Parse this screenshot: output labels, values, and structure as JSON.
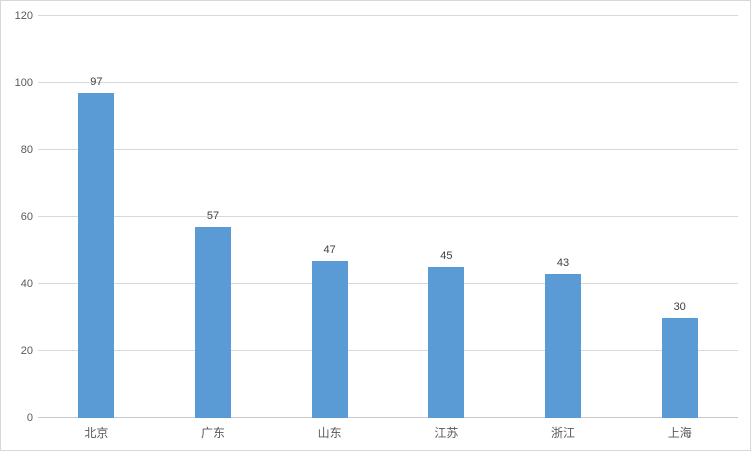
{
  "chart_style": {
    "bar_color": "#5b9bd5",
    "gridline_color": "#d9d9d9",
    "axis_line_color": "#c9c9c9",
    "tick_label_color": "#595959",
    "value_label_color": "#404040",
    "background_color": "#ffffff",
    "border_color": "#d7d7d7"
  },
  "chart_data": {
    "type": "bar",
    "title": "",
    "xlabel": "",
    "ylabel": "",
    "categories": [
      "北京",
      "广东",
      "山东",
      "江苏",
      "浙江",
      "上海"
    ],
    "values": [
      97,
      57,
      47,
      45,
      43,
      30
    ],
    "value_labels_shown": true,
    "ylim": [
      0,
      120
    ],
    "yticks": [
      0,
      20,
      40,
      60,
      80,
      100,
      120
    ],
    "grid": true,
    "legend": false
  }
}
